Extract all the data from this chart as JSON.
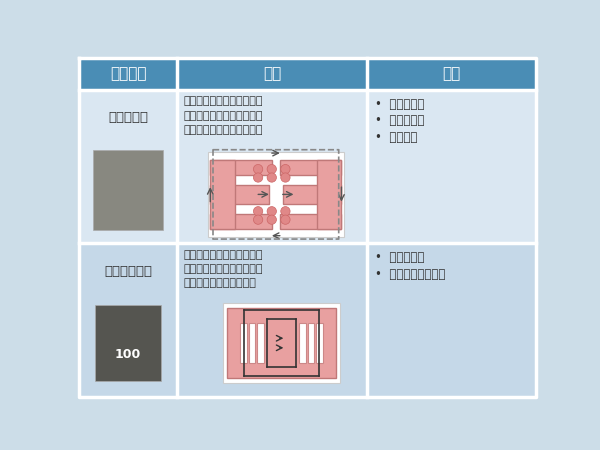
{
  "bg_color": "#ccdde8",
  "header_bg": "#4a8db5",
  "header_text_color": "#ffffff",
  "cell_bg_light": "#dae7f2",
  "cell_bg_dark": "#c5d8e8",
  "divider_color": "#ffffff",
  "col_headers": [
    "电感类型",
    "结构",
    "特点"
  ],
  "row1_type": "半屏蔽电感",
  "row1_struct_lines": [
    "工型电感外加磁屏蔽层，磁",
    "路主要由导磁材料构成，存",
    "在少量暴露在空气中的漏磁"
  ],
  "row1_features": [
    "高频特性好",
    "饱和特性差",
    "价格较高"
  ],
  "row2_type": "一体成型电感",
  "row2_struct_lines": [
    "绕组和导磁材料一次铸造而",
    "成，磁路基本仅由导磁材料",
    "构成，空气中的此漏很少"
  ],
  "row2_features": [
    "饱和特性好",
    "不太适合高频场合"
  ]
}
